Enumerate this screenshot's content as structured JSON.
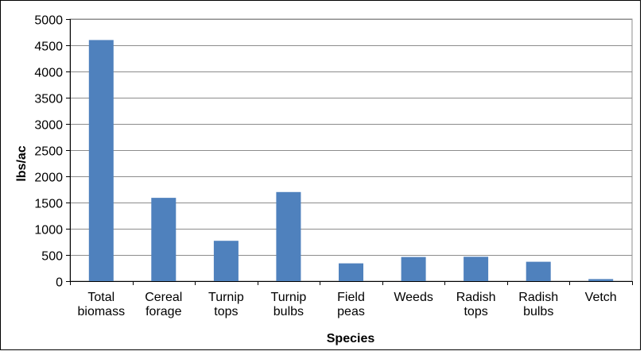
{
  "chart_data": {
    "type": "bar",
    "title": "",
    "xlabel": "Species",
    "ylabel": "lbs/ac",
    "categories": [
      [
        "Total",
        "biomass"
      ],
      [
        "Cereal",
        "forage"
      ],
      [
        "Turnip",
        "tops"
      ],
      [
        "Turnip",
        "bulbs"
      ],
      [
        "Field",
        "peas"
      ],
      [
        "Weeds"
      ],
      [
        "Radish",
        "tops"
      ],
      [
        "Radish",
        "bulbs"
      ],
      [
        "Vetch"
      ]
    ],
    "values": [
      4600,
      1590,
      770,
      1700,
      340,
      460,
      465,
      370,
      40
    ],
    "ylim": [
      0,
      5000
    ],
    "yticks": [
      0,
      500,
      1000,
      1500,
      2000,
      2500,
      3000,
      3500,
      4000,
      4500,
      5000
    ],
    "grid": true,
    "legend": "none",
    "colors": {
      "bar": "#4f81bd",
      "grid": "#8c8c8c",
      "axis": "#000000",
      "frame": "#000000"
    }
  }
}
